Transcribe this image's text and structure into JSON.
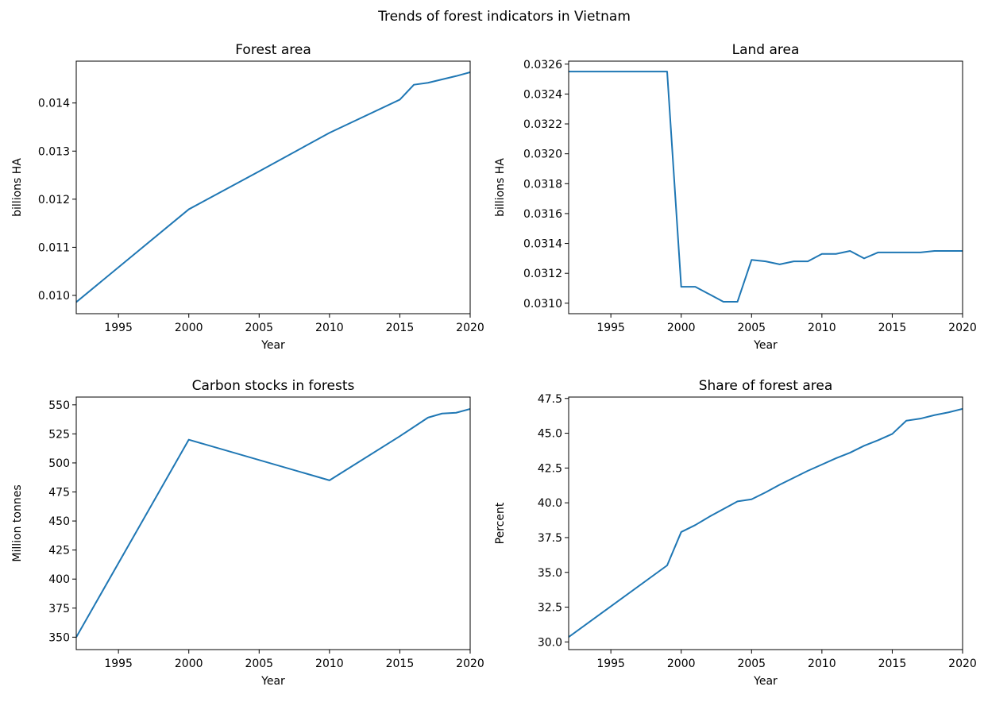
{
  "figure_title": "Trends of forest indicators in Vietnam",
  "colors": {
    "line": "#1f77b4",
    "axis": "#000000",
    "background": "#ffffff"
  },
  "chart_data": [
    {
      "type": "line",
      "title": "Forest area",
      "xlabel": "Year",
      "ylabel": "billions HA",
      "xlim": [
        1992,
        2020
      ],
      "ylim": [
        0.00962,
        0.01487
      ],
      "xticks": [
        1995,
        2000,
        2005,
        2010,
        2015,
        2020
      ],
      "yticks": [
        0.01,
        0.011,
        0.012,
        0.013,
        0.014
      ],
      "ytick_decimals": 3,
      "grid": false,
      "series": [
        {
          "x": [
            1992,
            2000,
            2005,
            2010,
            2015,
            2016,
            2017,
            2018,
            2019,
            2020
          ],
          "y": [
            0.00986,
            0.01179,
            0.01258,
            0.01338,
            0.01407,
            0.01438,
            0.01442,
            0.01449,
            0.01456,
            0.01464
          ]
        }
      ]
    },
    {
      "type": "line",
      "title": "Land area",
      "xlabel": "Year",
      "ylabel": "billions HA",
      "xlim": [
        1992,
        2020
      ],
      "ylim": [
        0.03093,
        0.03262
      ],
      "xticks": [
        1995,
        2000,
        2005,
        2010,
        2015,
        2020
      ],
      "yticks": [
        0.031,
        0.0312,
        0.0314,
        0.0316,
        0.0318,
        0.032,
        0.0322,
        0.0324,
        0.0326
      ],
      "ytick_decimals": 4,
      "grid": false,
      "series": [
        {
          "x": [
            1992,
            1999,
            2000,
            2001,
            2002,
            2003,
            2004,
            2005,
            2006,
            2007,
            2008,
            2009,
            2010,
            2011,
            2012,
            2013,
            2014,
            2015,
            2016,
            2017,
            2018,
            2019,
            2020
          ],
          "y": [
            0.03255,
            0.03255,
            0.03111,
            0.03111,
            0.03106,
            0.03101,
            0.03101,
            0.03129,
            0.03128,
            0.03126,
            0.03128,
            0.03128,
            0.03133,
            0.03133,
            0.03135,
            0.0313,
            0.03134,
            0.03134,
            0.03134,
            0.03134,
            0.03135,
            0.03135,
            0.03135
          ]
        }
      ]
    },
    {
      "type": "line",
      "title": "Carbon stocks in forests",
      "xlabel": "Year",
      "ylabel": "Million tonnes",
      "xlim": [
        1992,
        2020
      ],
      "ylim": [
        339.3,
        556.7
      ],
      "xticks": [
        1995,
        2000,
        2005,
        2010,
        2015,
        2020
      ],
      "yticks": [
        350,
        375,
        400,
        425,
        450,
        475,
        500,
        525,
        550
      ],
      "ytick_decimals": 0,
      "grid": false,
      "series": [
        {
          "x": [
            1992,
            2000,
            2010,
            2015,
            2017,
            2018,
            2019,
            2020
          ],
          "y": [
            350,
            520,
            485,
            523,
            539,
            542.5,
            543.2,
            546.5
          ]
        }
      ]
    },
    {
      "type": "line",
      "title": "Share of forest area",
      "xlabel": "Year",
      "ylabel": "Percent",
      "xlim": [
        1992,
        2020
      ],
      "ylim": [
        29.45,
        47.6
      ],
      "xticks": [
        1995,
        2000,
        2005,
        2010,
        2015,
        2020
      ],
      "yticks": [
        30.0,
        32.5,
        35.0,
        37.5,
        40.0,
        42.5,
        45.0,
        47.5
      ],
      "ytick_decimals": 1,
      "grid": false,
      "series": [
        {
          "x": [
            1992,
            1999,
            2000,
            2001,
            2002,
            2003,
            2004,
            2005,
            2006,
            2007,
            2008,
            2009,
            2010,
            2011,
            2012,
            2013,
            2014,
            2015,
            2016,
            2017,
            2018,
            2019,
            2020
          ],
          "y": [
            30.35,
            35.5,
            37.9,
            38.4,
            39.0,
            39.55,
            40.1,
            40.25,
            40.75,
            41.3,
            41.8,
            42.3,
            42.75,
            43.2,
            43.6,
            44.1,
            44.5,
            44.95,
            45.9,
            46.05,
            46.3,
            46.5,
            46.75
          ]
        }
      ]
    }
  ]
}
